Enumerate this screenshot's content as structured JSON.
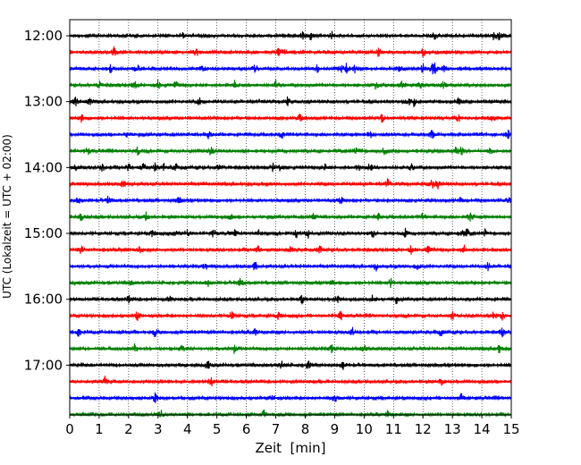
{
  "chart_data": {
    "type": "line",
    "title": "",
    "xlabel": "Zeit  [min]",
    "ylabel": "UTC (Lokalzeit = UTC + 02:00)",
    "xlim": [
      0,
      15
    ],
    "ylim_minutes": [
      720,
      1080
    ],
    "x_ticks": [
      "0",
      "1",
      "2",
      "3",
      "4",
      "5",
      "6",
      "7",
      "8",
      "9",
      "10",
      "11",
      "12",
      "13",
      "14",
      "15"
    ],
    "y_ticks": [
      {
        "label": "12:00",
        "minutes": 720
      },
      {
        "label": "13:00",
        "minutes": 780
      },
      {
        "label": "14:00",
        "minutes": 840
      },
      {
        "label": "15:00",
        "minutes": 900
      },
      {
        "label": "16:00",
        "minutes": 960
      },
      {
        "label": "17:00",
        "minutes": 1020
      }
    ],
    "grid": "vertical-dotted",
    "trace_interval_minutes": 15,
    "trace_colors": [
      "#000000",
      "#ff0000",
      "#0000ff",
      "#008000"
    ],
    "series": [
      {
        "name": "12:00",
        "start_minute": 720,
        "color": "#000000",
        "events": [
          3.8,
          7.9,
          8.2,
          8.9,
          12.4,
          14.4,
          14.6
        ]
      },
      {
        "name": "12:15",
        "start_minute": 735,
        "color": "#ff0000",
        "events": [
          1.5,
          4.3,
          7.1,
          7.3,
          10.5,
          12.0
        ]
      },
      {
        "name": "12:30",
        "start_minute": 750,
        "color": "#0000ff",
        "events": [
          1.4,
          2.3,
          4.5,
          6.3,
          8.4,
          9.2,
          9.4,
          9.7,
          11.2,
          12.0,
          12.3,
          12.4,
          12.7
        ]
      },
      {
        "name": "12:45",
        "start_minute": 765,
        "color": "#008000",
        "events": [
          1.0,
          2.2,
          3.0,
          3.6,
          5.6,
          7.0,
          10.4,
          11.3,
          11.9,
          12.7
        ]
      },
      {
        "name": "13:00",
        "start_minute": 780,
        "color": "#000000",
        "events": [
          0.2,
          0.7,
          4.4,
          7.4,
          11.5,
          11.7,
          13.2
        ]
      },
      {
        "name": "13:15",
        "start_minute": 795,
        "color": "#ff0000",
        "events": [
          0.4,
          7.8,
          10.6,
          13.2,
          14.4
        ]
      },
      {
        "name": "13:30",
        "start_minute": 810,
        "color": "#0000ff",
        "events": [
          2.0,
          4.7,
          7.2,
          10.2,
          12.3,
          14.9
        ]
      },
      {
        "name": "13:45",
        "start_minute": 825,
        "color": "#008000",
        "events": [
          0.6,
          2.3,
          4.8,
          9.7,
          10.7,
          13.1,
          13.3,
          14.3
        ]
      },
      {
        "name": "14:00",
        "start_minute": 840,
        "color": "#000000",
        "events": [
          0.2,
          1.1,
          2.0,
          2.5,
          2.9,
          3.2,
          3.6,
          5.1,
          6.9,
          7.1,
          8.7,
          9.8,
          10.2,
          11.6
        ]
      },
      {
        "name": "14:15",
        "start_minute": 855,
        "color": "#ff0000",
        "events": [
          1.8,
          10.8,
          12.3,
          12.5
        ]
      },
      {
        "name": "14:30",
        "start_minute": 870,
        "color": "#0000ff",
        "events": [
          0.3,
          1.3,
          3.7,
          9.2,
          13.3,
          14.9
        ]
      },
      {
        "name": "14:45",
        "start_minute": 885,
        "color": "#008000",
        "events": [
          0.4,
          2.6,
          5.5,
          8.3,
          10.5,
          12.0,
          13.6
        ]
      },
      {
        "name": "15:00",
        "start_minute": 900,
        "color": "#000000",
        "events": [
          2.8,
          3.6,
          4.0,
          4.9,
          5.6,
          6.4,
          7.7,
          8.1,
          10.3,
          11.4,
          13.3,
          13.5,
          14.1
        ]
      },
      {
        "name": "15:15",
        "start_minute": 915,
        "color": "#ff0000",
        "events": [
          0.4,
          2.4,
          6.4,
          7.5,
          8.5,
          11.6,
          12.2,
          13.4
        ]
      },
      {
        "name": "15:30",
        "start_minute": 930,
        "color": "#0000ff",
        "events": [
          4.6,
          6.3,
          10.4,
          11.8,
          14.2
        ]
      },
      {
        "name": "15:45",
        "start_minute": 945,
        "color": "#008000",
        "events": [
          2.1,
          4.7,
          5.8,
          8.9,
          10.9
        ]
      },
      {
        "name": "16:00",
        "start_minute": 960,
        "color": "#000000",
        "events": [
          2.0,
          3.4,
          7.9,
          9.1,
          10.3,
          11.1
        ]
      },
      {
        "name": "16:15",
        "start_minute": 975,
        "color": "#ff0000",
        "events": [
          2.3,
          5.5,
          7.1,
          9.2,
          13.0,
          14.4,
          14.7
        ]
      },
      {
        "name": "16:30",
        "start_minute": 990,
        "color": "#0000ff",
        "events": [
          0.3,
          2.9,
          6.3,
          9.6,
          12.6,
          14.7
        ]
      },
      {
        "name": "16:45",
        "start_minute": 1005,
        "color": "#008000",
        "events": [
          2.2,
          3.8,
          5.6,
          8.9,
          10.0,
          14.6
        ]
      },
      {
        "name": "17:00",
        "start_minute": 1020,
        "color": "#000000",
        "events": [
          4.7,
          7.2,
          8.1,
          9.3
        ]
      },
      {
        "name": "17:15",
        "start_minute": 1035,
        "color": "#ff0000",
        "events": [
          1.2,
          4.8,
          12.6
        ]
      },
      {
        "name": "17:30",
        "start_minute": 1050,
        "color": "#0000ff",
        "events": [
          2.9,
          6.9,
          9.0,
          13.3
        ]
      },
      {
        "name": "17:45",
        "start_minute": 1065,
        "color": "#008000",
        "events": [
          3.1,
          6.6,
          10.8
        ]
      }
    ]
  }
}
